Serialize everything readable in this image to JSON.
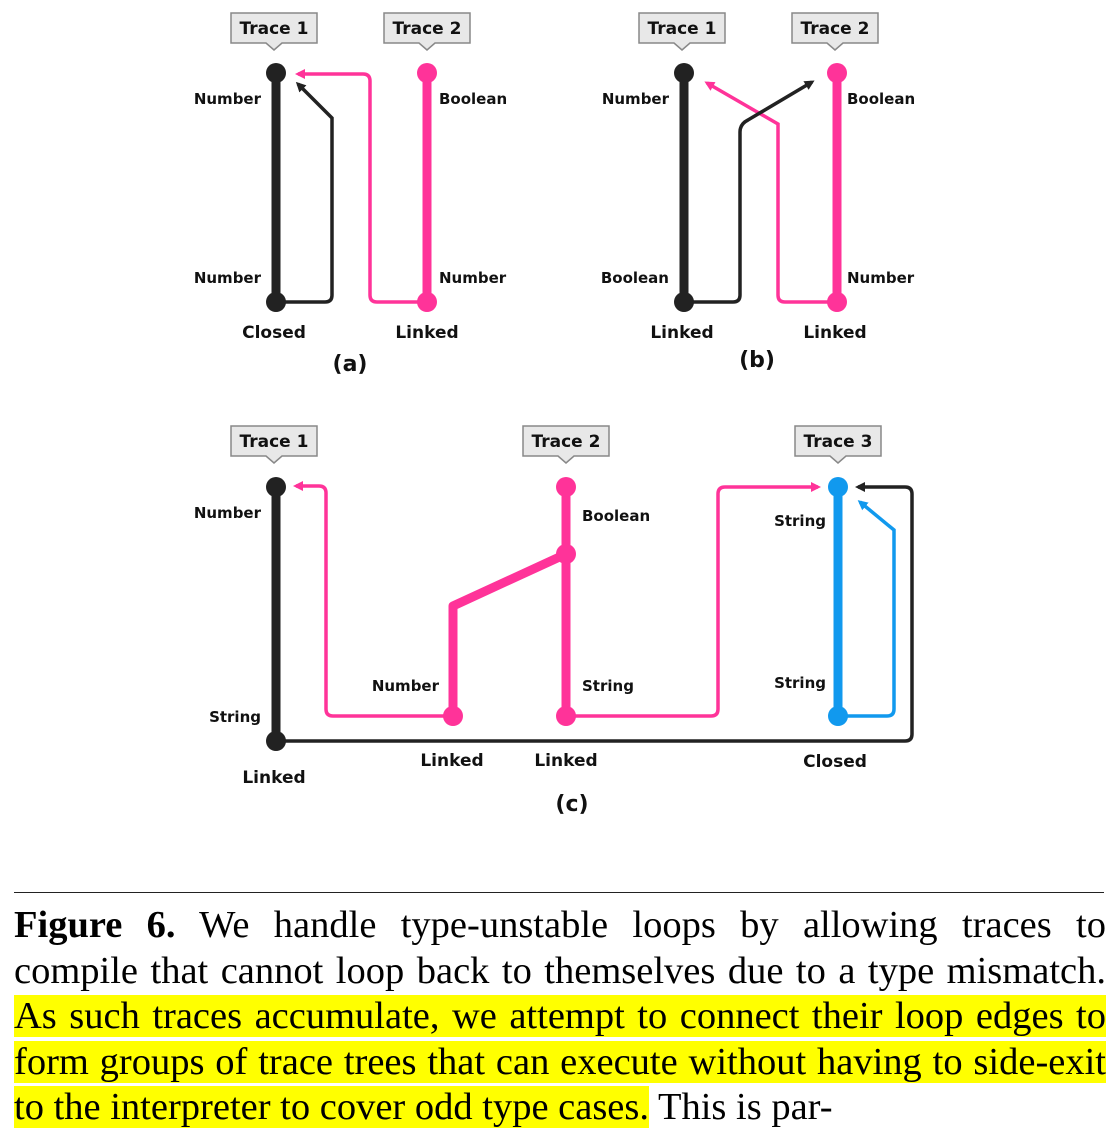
{
  "colors": {
    "trace1": "#222222",
    "trace2": "#ff3399",
    "trace3": "#1199ee",
    "highlight": "#ffff00"
  },
  "panel_a": {
    "sublabel": "(a)",
    "trace1": {
      "tag": "Trace 1",
      "top_type": "Number",
      "bottom_type": "Number",
      "status": "Closed"
    },
    "trace2": {
      "tag": "Trace 2",
      "top_type": "Boolean",
      "bottom_type": "Number",
      "status": "Linked"
    }
  },
  "panel_b": {
    "sublabel": "(b)",
    "trace1": {
      "tag": "Trace 1",
      "top_type": "Number",
      "bottom_type": "Boolean",
      "status": "Linked"
    },
    "trace2": {
      "tag": "Trace 2",
      "top_type": "Boolean",
      "bottom_type": "Number",
      "status": "Linked"
    }
  },
  "panel_c": {
    "sublabel": "(c)",
    "trace1": {
      "tag": "Trace 1",
      "top_type": "Number",
      "bottom_type": "String",
      "status": "Linked"
    },
    "trace2": {
      "tag": "Trace 2",
      "top_type": "Boolean",
      "branch_type": "Number",
      "bottom_type": "String",
      "branch_status": "Linked",
      "status": "Linked"
    },
    "trace3": {
      "tag": "Trace 3",
      "top_type": "String",
      "bottom_type": "String",
      "status": "Closed"
    }
  },
  "caption": {
    "label": "Figure 6.",
    "text_plain_1": " We handle type-unstable loops by allowing traces to compile that cannot loop back to themselves due to a type mismatch. ",
    "text_highlighted": "As such traces accumulate, we attempt to connect their loop edges to form groups of trace trees that can execute without having to side-exit to the interpreter to cover odd type cases.",
    "text_plain_2": " This is par-"
  }
}
